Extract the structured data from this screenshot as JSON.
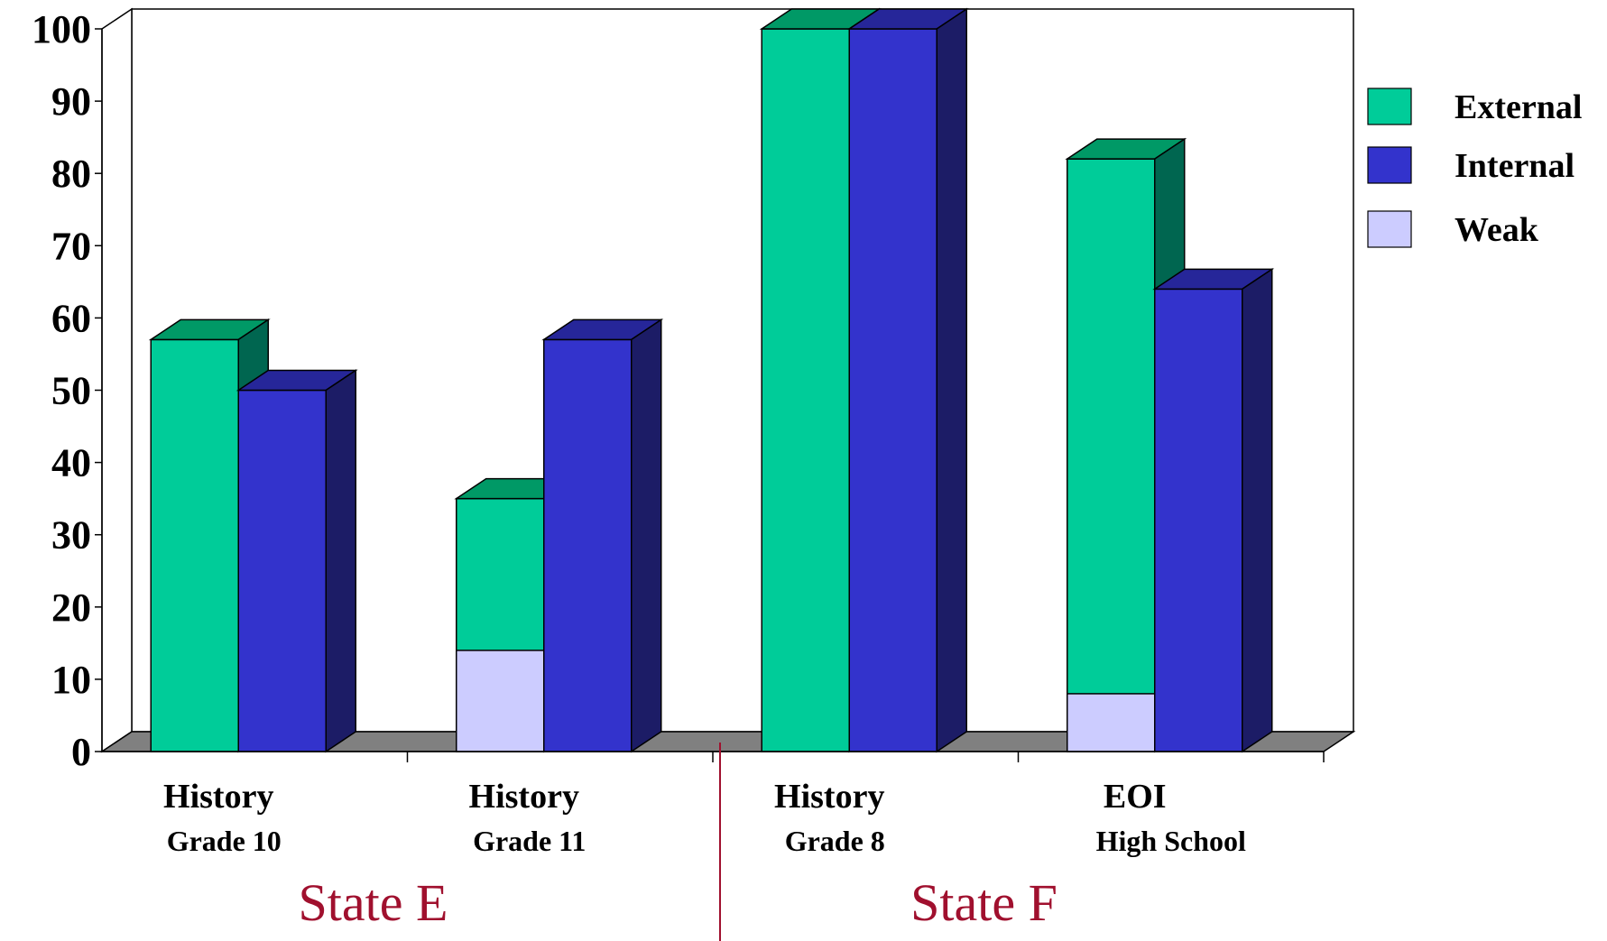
{
  "chart_data": {
    "type": "bar",
    "stacked_component": "Weak",
    "categories": [
      {
        "main": "History",
        "sub": "Grade 10"
      },
      {
        "main": "History",
        "sub": "Grade 11"
      },
      {
        "main": "History",
        "sub": "Grade 8"
      },
      {
        "main": "EOI",
        "sub": "High School"
      }
    ],
    "series": [
      {
        "name": "External",
        "values": [
          57,
          35,
          100,
          82
        ],
        "color": "#00cc99",
        "top_color": "#009966",
        "side_color": "#006650"
      },
      {
        "name": "Internal",
        "values": [
          50,
          57,
          100,
          64
        ],
        "color": "#3333cc",
        "top_color": "#262699",
        "side_color": "#1c1c66"
      }
    ],
    "weak": {
      "name": "Weak",
      "color": "#ccccff",
      "values": [
        0,
        14,
        0,
        8
      ],
      "applies_to": "External"
    },
    "groups": [
      {
        "label": "State E",
        "categories": [
          0,
          1
        ]
      },
      {
        "label": "State F",
        "categories": [
          2,
          3
        ]
      }
    ],
    "group_label_color": "#a0102e",
    "ylim": [
      0,
      100
    ],
    "yticks": [
      "0",
      "10",
      "20",
      "30",
      "40",
      "50",
      "60",
      "70",
      "80",
      "90",
      "100"
    ],
    "legend": [
      "External",
      "Internal",
      "Weak"
    ],
    "legend_position": "right",
    "floor_color": "#808080",
    "title": "",
    "xlabel": "",
    "ylabel": ""
  }
}
